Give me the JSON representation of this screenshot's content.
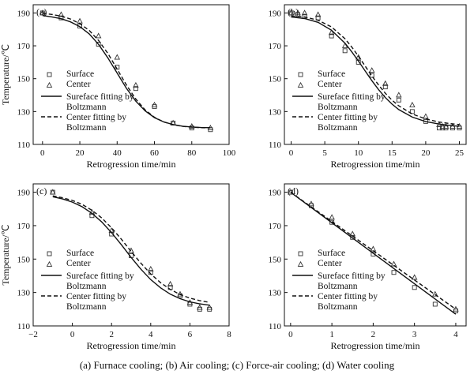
{
  "caption": "(a)   Furnace cooling; (b) Air cooling; (c) Force-air cooling; (d) Water cooling",
  "chart_data": [
    {
      "type": "scatter",
      "panel_label": "(a)",
      "xlabel": "Retrogression time/min",
      "ylabel": "Temperature/℃",
      "xlim": [
        -5,
        100
      ],
      "ylim": [
        110,
        195
      ],
      "xticks": [
        0,
        20,
        40,
        60,
        80,
        100
      ],
      "yticks": [
        110,
        130,
        150,
        170,
        190
      ],
      "legend_position": "left",
      "series": [
        {
          "name": "Surface",
          "kind": "points",
          "marker": "square",
          "x": [
            0,
            10,
            20,
            30,
            40,
            50,
            60,
            70,
            80,
            90
          ],
          "y": [
            190,
            187,
            182,
            171,
            157,
            144,
            133,
            123,
            120,
            119
          ]
        },
        {
          "name": "Center",
          "kind": "points",
          "marker": "triangle",
          "x": [
            0,
            10,
            20,
            30,
            40,
            50,
            60,
            70,
            80,
            90
          ],
          "y": [
            190,
            189,
            185,
            176,
            163,
            146,
            134,
            123,
            121,
            120
          ]
        },
        {
          "name": "Sureface fitting by Boltzmann",
          "kind": "line",
          "dash": "solid",
          "x": [
            0,
            5,
            10,
            15,
            20,
            25,
            30,
            35,
            40,
            45,
            50,
            55,
            60,
            65,
            70,
            75,
            80,
            85,
            90
          ],
          "y": [
            188.4,
            187.6,
            186.5,
            184.6,
            181.7,
            177.3,
            170.9,
            162.7,
            153.4,
            144.1,
            136.3,
            130.4,
            126.3,
            123.7,
            122.1,
            121.1,
            120.6,
            120.3,
            120.2
          ]
        },
        {
          "name": "Center fitting by Boltzmann",
          "kind": "line",
          "dash": "dashed",
          "x": [
            0,
            5,
            10,
            15,
            20,
            25,
            30,
            35,
            40,
            45,
            50,
            55,
            60,
            65,
            70,
            75,
            80,
            85,
            90
          ],
          "y": [
            189.8,
            189.1,
            188.1,
            186.3,
            183.5,
            179.4,
            173.3,
            165.4,
            155.8,
            146.1,
            137.6,
            131.0,
            126.5,
            123.7,
            122.0,
            121.0,
            120.5,
            120.2,
            120.1
          ]
        }
      ]
    },
    {
      "type": "scatter",
      "panel_label": "(b)",
      "xlabel": "Retrogression time/min",
      "ylabel": "",
      "xlim": [
        -1,
        26
      ],
      "ylim": [
        110,
        195
      ],
      "xticks": [
        0,
        5,
        10,
        15,
        20,
        25
      ],
      "yticks": [
        110,
        130,
        150,
        170,
        190
      ],
      "legend_position": "left",
      "series": [
        {
          "name": "Surface",
          "kind": "points",
          "marker": "square",
          "x": [
            0,
            1,
            2,
            4,
            6,
            8,
            10,
            12,
            14,
            16,
            18,
            20,
            22,
            22.5,
            23,
            24,
            25
          ],
          "y": [
            190,
            189,
            188,
            187,
            176,
            167,
            160,
            152,
            145,
            137,
            130,
            124,
            120,
            120,
            120,
            120,
            120
          ]
        },
        {
          "name": "Center",
          "kind": "points",
          "marker": "triangle",
          "x": [
            0,
            1,
            2,
            4,
            6,
            8,
            10,
            12,
            14,
            16,
            18,
            20,
            22,
            22.5,
            23,
            24,
            25
          ],
          "y": [
            190,
            190,
            190,
            189,
            178,
            170,
            163,
            155,
            147,
            140,
            134,
            127,
            122,
            121,
            121,
            121,
            121
          ]
        },
        {
          "name": "Sureface fitting by Boltzmann",
          "kind": "line",
          "dash": "solid",
          "x": [
            0,
            2,
            4,
            6,
            8,
            9,
            10,
            11,
            12,
            13,
            14,
            15,
            16,
            18,
            20,
            22,
            24,
            25
          ],
          "y": [
            187.5,
            186.6,
            184.3,
            179.5,
            171.6,
            166.4,
            160.7,
            154.7,
            148.8,
            143.3,
            138.5,
            134.5,
            131.2,
            126.6,
            123.9,
            122.4,
            121.4,
            121.0
          ]
        },
        {
          "name": "Center fitting by Boltzmann",
          "kind": "line",
          "dash": "dashed",
          "x": [
            0,
            2,
            4,
            6,
            8,
            9,
            10,
            11,
            12,
            13,
            14,
            15,
            16,
            18,
            20,
            22,
            24,
            25
          ],
          "y": [
            188.2,
            187.6,
            185.6,
            181.5,
            174.3,
            169.3,
            163.7,
            157.7,
            151.7,
            146.1,
            141.1,
            136.9,
            133.5,
            128.5,
            125.5,
            123.6,
            122.5,
            122.1
          ]
        }
      ]
    },
    {
      "type": "scatter",
      "panel_label": "(c)",
      "xlabel": "Retrogression time/min",
      "ylabel": "Temperature/℃",
      "xlim": [
        -2,
        8
      ],
      "ylim": [
        110,
        195
      ],
      "xticks": [
        -2,
        0,
        2,
        4,
        6,
        8
      ],
      "yticks": [
        110,
        130,
        150,
        170,
        190
      ],
      "legend_position": "left",
      "series": [
        {
          "name": "Surface",
          "kind": "points",
          "marker": "square",
          "x": [
            -1,
            1,
            2,
            3,
            4,
            5,
            5.5,
            6,
            6.5,
            7
          ],
          "y": [
            190,
            176,
            165,
            152,
            142,
            133,
            128,
            123,
            120,
            120
          ]
        },
        {
          "name": "Center",
          "kind": "points",
          "marker": "triangle",
          "x": [
            -1,
            1,
            2,
            3,
            4,
            5,
            5.5,
            6,
            6.5,
            7
          ],
          "y": [
            190,
            178,
            167,
            155,
            144,
            135,
            129,
            124,
            121,
            121
          ]
        },
        {
          "name": "Sureface fitting by Boltzmann",
          "kind": "line",
          "dash": "solid",
          "x": [
            -1,
            -0.5,
            0,
            0.5,
            1,
            1.5,
            2,
            2.5,
            3,
            3.5,
            4,
            4.5,
            5,
            5.5,
            6,
            6.5,
            7
          ],
          "y": [
            187.3,
            186.0,
            184.1,
            181.3,
            177.4,
            172.2,
            165.8,
            158.6,
            151.0,
            143.9,
            137.7,
            132.8,
            129.0,
            126.3,
            124.4,
            123.2,
            122.4
          ]
        },
        {
          "name": "Center fitting by Boltzmann",
          "kind": "line",
          "dash": "dashed",
          "x": [
            -1,
            -0.5,
            0,
            0.5,
            1,
            1.5,
            2,
            2.5,
            3,
            3.5,
            4,
            4.5,
            5,
            5.5,
            6,
            6.5,
            7
          ],
          "y": [
            187.8,
            186.7,
            185.1,
            182.7,
            179.2,
            174.6,
            168.7,
            161.9,
            154.6,
            147.5,
            141.1,
            135.9,
            131.8,
            128.8,
            126.6,
            125.1,
            124.1
          ]
        }
      ]
    },
    {
      "type": "scatter",
      "panel_label": "(d)",
      "xlabel": "Retrogression time/min",
      "ylabel": "",
      "xlim": [
        -0.15,
        4.25
      ],
      "ylim": [
        110,
        195
      ],
      "xticks": [
        0,
        1,
        2,
        3,
        4
      ],
      "yticks": [
        110,
        130,
        150,
        170,
        190
      ],
      "legend_position": "left",
      "series": [
        {
          "name": "Surface",
          "kind": "points",
          "marker": "square",
          "x": [
            0,
            0.5,
            1,
            1.5,
            2,
            2.5,
            3,
            3.5,
            4
          ],
          "y": [
            190,
            182,
            172,
            163,
            153,
            142,
            133,
            123,
            119
          ]
        },
        {
          "name": "Center",
          "kind": "points",
          "marker": "triangle",
          "x": [
            0,
            0.5,
            1,
            1.5,
            2,
            2.5,
            3,
            3.5,
            4
          ],
          "y": [
            190,
            183,
            175,
            165,
            156,
            147,
            139,
            129,
            120
          ]
        },
        {
          "name": "Sureface fitting by Boltzmann",
          "kind": "line",
          "dash": "solid",
          "x": [
            0,
            4
          ],
          "y": [
            190,
            117
          ]
        },
        {
          "name": "Center fitting by Boltzmann",
          "kind": "line",
          "dash": "dashed",
          "x": [
            0,
            4
          ],
          "y": [
            190,
            120
          ]
        }
      ]
    }
  ]
}
